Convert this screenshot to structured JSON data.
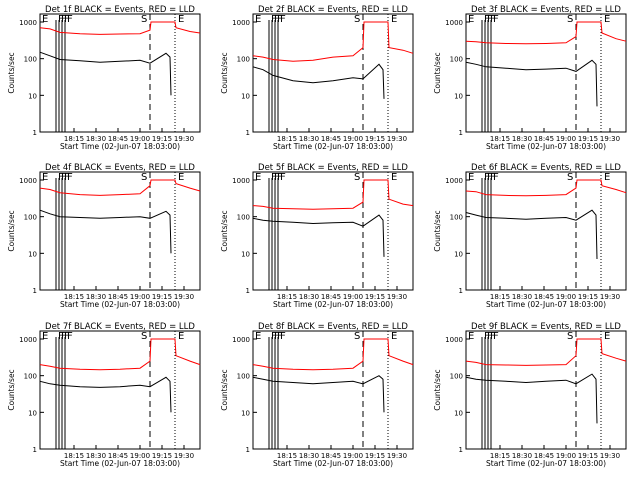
{
  "panels": [
    {
      "title": "Det 1f BLACK = Events, RED = LLD"
    },
    {
      "title": "Det 2f BLACK = Events, RED = LLD"
    },
    {
      "title": "Det 3f BLACK = Events, RED = LLD"
    },
    {
      "title": "Det 4f BLACK = Events, RED = LLD"
    },
    {
      "title": "Det 5f BLACK = Events, RED = LLD"
    },
    {
      "title": "Det 6f BLACK = Events, RED = LLD"
    },
    {
      "title": "Det 7f BLACK = Events, RED = LLD"
    },
    {
      "title": "Det 8f BLACK = Events, RED = LLD"
    },
    {
      "title": "Det 9f BLACK = Events, RED = LLD"
    }
  ],
  "axes": {
    "xlabel": "Start Time (02-Jun-07 18:03:00)",
    "ylabel": "Counts/sec",
    "xticks": [
      "18:15",
      "18:30",
      "18:45",
      "19:00",
      "19:15",
      "19:30"
    ],
    "yticks": [
      "1",
      "10",
      "100",
      "1000"
    ]
  },
  "colors": {
    "events": "#000000",
    "lld": "#ff0000",
    "background": "#ffffff"
  },
  "markers": {
    "start": "E",
    "saa": "S",
    "end": "E",
    "f": "F"
  },
  "chart_data": {
    "type": "line",
    "grid": false,
    "ylog": true,
    "ylim": [
      1,
      1000
    ],
    "xlabel": "Start Time (02-Jun-07 18:03:00)",
    "ylabel": "Counts/sec",
    "series_names": [
      "BLACK = Events",
      "RED = LLD"
    ],
    "panels": [
      {
        "detector": "1f",
        "lld": [
          [
            0,
            700
          ],
          [
            10,
            650
          ],
          [
            20,
            520
          ],
          [
            40,
            480
          ],
          [
            60,
            460
          ],
          [
            80,
            470
          ],
          [
            100,
            480
          ],
          [
            110,
            600
          ],
          [
            111,
            1000
          ],
          [
            135,
            1000
          ],
          [
            136,
            700
          ],
          [
            150,
            550
          ],
          [
            160,
            500
          ]
        ],
        "events": [
          [
            0,
            150
          ],
          [
            10,
            120
          ],
          [
            20,
            95
          ],
          [
            40,
            88
          ],
          [
            60,
            80
          ],
          [
            80,
            85
          ],
          [
            100,
            90
          ],
          [
            110,
            75
          ],
          [
            126,
            140
          ],
          [
            130,
            110
          ],
          [
            131,
            10
          ]
        ]
      },
      {
        "detector": "2f",
        "lld": [
          [
            0,
            120
          ],
          [
            10,
            110
          ],
          [
            20,
            95
          ],
          [
            40,
            85
          ],
          [
            60,
            90
          ],
          [
            80,
            110
          ],
          [
            100,
            120
          ],
          [
            110,
            200
          ],
          [
            111,
            1000
          ],
          [
            135,
            1000
          ],
          [
            136,
            200
          ],
          [
            150,
            170
          ],
          [
            160,
            140
          ]
        ],
        "events": [
          [
            0,
            60
          ],
          [
            10,
            50
          ],
          [
            20,
            35
          ],
          [
            40,
            25
          ],
          [
            60,
            22
          ],
          [
            80,
            25
          ],
          [
            100,
            30
          ],
          [
            110,
            28
          ],
          [
            126,
            70
          ],
          [
            130,
            50
          ],
          [
            131,
            8
          ]
        ]
      },
      {
        "detector": "3f",
        "lld": [
          [
            0,
            300
          ],
          [
            10,
            290
          ],
          [
            20,
            270
          ],
          [
            40,
            260
          ],
          [
            60,
            255
          ],
          [
            80,
            260
          ],
          [
            100,
            270
          ],
          [
            110,
            400
          ],
          [
            111,
            1000
          ],
          [
            135,
            1000
          ],
          [
            136,
            500
          ],
          [
            150,
            350
          ],
          [
            160,
            300
          ]
        ],
        "events": [
          [
            0,
            80
          ],
          [
            10,
            70
          ],
          [
            20,
            60
          ],
          [
            40,
            55
          ],
          [
            60,
            50
          ],
          [
            80,
            52
          ],
          [
            100,
            55
          ],
          [
            110,
            45
          ],
          [
            126,
            90
          ],
          [
            130,
            70
          ],
          [
            131,
            5
          ]
        ]
      },
      {
        "detector": "4f",
        "lld": [
          [
            0,
            600
          ],
          [
            10,
            550
          ],
          [
            20,
            450
          ],
          [
            40,
            400
          ],
          [
            60,
            380
          ],
          [
            80,
            400
          ],
          [
            100,
            420
          ],
          [
            110,
            700
          ],
          [
            111,
            1000
          ],
          [
            135,
            1000
          ],
          [
            136,
            800
          ],
          [
            150,
            600
          ],
          [
            160,
            500
          ]
        ],
        "events": [
          [
            0,
            150
          ],
          [
            10,
            120
          ],
          [
            20,
            100
          ],
          [
            40,
            95
          ],
          [
            60,
            90
          ],
          [
            80,
            95
          ],
          [
            100,
            100
          ],
          [
            110,
            90
          ],
          [
            126,
            140
          ],
          [
            130,
            110
          ],
          [
            131,
            10
          ]
        ]
      },
      {
        "detector": "5f",
        "lld": [
          [
            0,
            200
          ],
          [
            10,
            190
          ],
          [
            20,
            170
          ],
          [
            40,
            165
          ],
          [
            60,
            160
          ],
          [
            80,
            165
          ],
          [
            100,
            170
          ],
          [
            110,
            250
          ],
          [
            111,
            1000
          ],
          [
            135,
            1000
          ],
          [
            136,
            300
          ],
          [
            150,
            220
          ],
          [
            160,
            200
          ]
        ],
        "events": [
          [
            0,
            90
          ],
          [
            10,
            80
          ],
          [
            20,
            75
          ],
          [
            40,
            70
          ],
          [
            60,
            65
          ],
          [
            80,
            68
          ],
          [
            100,
            70
          ],
          [
            110,
            55
          ],
          [
            126,
            110
          ],
          [
            130,
            80
          ],
          [
            131,
            8
          ]
        ]
      },
      {
        "detector": "6f",
        "lld": [
          [
            0,
            500
          ],
          [
            10,
            480
          ],
          [
            20,
            400
          ],
          [
            40,
            380
          ],
          [
            60,
            370
          ],
          [
            80,
            380
          ],
          [
            100,
            400
          ],
          [
            110,
            600
          ],
          [
            111,
            1000
          ],
          [
            135,
            1000
          ],
          [
            136,
            700
          ],
          [
            150,
            550
          ],
          [
            160,
            450
          ]
        ],
        "events": [
          [
            0,
            130
          ],
          [
            10,
            110
          ],
          [
            20,
            95
          ],
          [
            40,
            90
          ],
          [
            60,
            85
          ],
          [
            80,
            90
          ],
          [
            100,
            95
          ],
          [
            110,
            80
          ],
          [
            126,
            150
          ],
          [
            130,
            110
          ],
          [
            131,
            7
          ]
        ]
      },
      {
        "detector": "7f",
        "lld": [
          [
            0,
            200
          ],
          [
            10,
            180
          ],
          [
            20,
            160
          ],
          [
            40,
            150
          ],
          [
            60,
            145
          ],
          [
            80,
            150
          ],
          [
            100,
            160
          ],
          [
            110,
            250
          ],
          [
            111,
            1000
          ],
          [
            135,
            1000
          ],
          [
            136,
            350
          ],
          [
            150,
            250
          ],
          [
            160,
            200
          ]
        ],
        "events": [
          [
            0,
            70
          ],
          [
            10,
            60
          ],
          [
            20,
            55
          ],
          [
            40,
            50
          ],
          [
            60,
            48
          ],
          [
            80,
            50
          ],
          [
            100,
            55
          ],
          [
            110,
            50
          ],
          [
            126,
            90
          ],
          [
            130,
            70
          ],
          [
            131,
            10
          ]
        ]
      },
      {
        "detector": "8f",
        "lld": [
          [
            0,
            200
          ],
          [
            10,
            180
          ],
          [
            20,
            160
          ],
          [
            40,
            150
          ],
          [
            60,
            145
          ],
          [
            80,
            150
          ],
          [
            100,
            160
          ],
          [
            110,
            250
          ],
          [
            111,
            1000
          ],
          [
            135,
            1000
          ],
          [
            136,
            350
          ],
          [
            150,
            250
          ],
          [
            160,
            200
          ]
        ],
        "events": [
          [
            0,
            90
          ],
          [
            10,
            80
          ],
          [
            20,
            70
          ],
          [
            40,
            65
          ],
          [
            60,
            60
          ],
          [
            80,
            65
          ],
          [
            100,
            70
          ],
          [
            110,
            60
          ],
          [
            126,
            100
          ],
          [
            130,
            80
          ],
          [
            131,
            10
          ]
        ]
      },
      {
        "detector": "9f",
        "lld": [
          [
            0,
            250
          ],
          [
            10,
            230
          ],
          [
            20,
            200
          ],
          [
            40,
            195
          ],
          [
            60,
            190
          ],
          [
            80,
            195
          ],
          [
            100,
            200
          ],
          [
            110,
            350
          ],
          [
            111,
            1000
          ],
          [
            135,
            1000
          ],
          [
            136,
            400
          ],
          [
            150,
            300
          ],
          [
            160,
            250
          ]
        ],
        "events": [
          [
            0,
            90
          ],
          [
            10,
            80
          ],
          [
            20,
            75
          ],
          [
            40,
            70
          ],
          [
            60,
            65
          ],
          [
            80,
            70
          ],
          [
            100,
            75
          ],
          [
            110,
            60
          ],
          [
            126,
            110
          ],
          [
            130,
            80
          ],
          [
            131,
            5
          ]
        ]
      }
    ]
  }
}
